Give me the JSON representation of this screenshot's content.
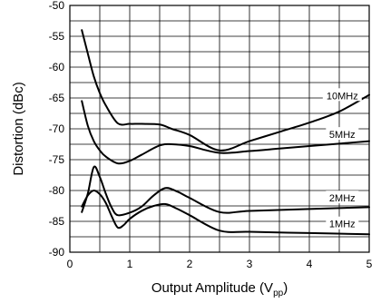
{
  "chart_data": {
    "type": "line",
    "xlabel": "Output Amplitude (V",
    "xlabel_sub": "pp",
    "xlabel_close": ")",
    "ylabel": "Distortion (dBc)",
    "xlim": [
      0,
      5
    ],
    "ylim": [
      -90,
      -50
    ],
    "xticks": [
      0,
      1,
      2,
      3,
      4,
      5
    ],
    "yticks": [
      -50,
      -55,
      -60,
      -65,
      -70,
      -75,
      -80,
      -85,
      -90
    ],
    "grid": true,
    "series": [
      {
        "name": "10MHz",
        "x": [
          0.2,
          0.3,
          0.4,
          0.5,
          0.6,
          0.8,
          1.0,
          1.2,
          1.5,
          1.7,
          2.0,
          2.5,
          3.0,
          3.5,
          4.0,
          4.5,
          5.0
        ],
        "y": [
          -54,
          -57.8,
          -61.5,
          -64.2,
          -66.2,
          -69.1,
          -69.2,
          -69.2,
          -69.3,
          -70.0,
          -71.0,
          -73.5,
          -72.0,
          -70.5,
          -69.0,
          -67.2,
          -64.5
        ]
      },
      {
        "name": "5MHz",
        "x": [
          0.2,
          0.3,
          0.4,
          0.5,
          0.6,
          0.8,
          1.0,
          1.2,
          1.5,
          1.7,
          2.0,
          2.5,
          3.0,
          3.5,
          4.0,
          4.5,
          5.0
        ],
        "y": [
          -65.5,
          -69.5,
          -72.0,
          -73.5,
          -74.5,
          -75.6,
          -75.2,
          -74.2,
          -72.7,
          -72.5,
          -72.8,
          -73.9,
          -73.6,
          -73.2,
          -72.8,
          -72.4,
          -72.0
        ]
      },
      {
        "name": "2MHz",
        "x": [
          0.2,
          0.3,
          0.4,
          0.5,
          0.6,
          0.7,
          0.8,
          1.0,
          1.2,
          1.4,
          1.6,
          1.8,
          2.0,
          2.5,
          3.0,
          4.0,
          5.0
        ],
        "y": [
          -83.5,
          -80.5,
          -76.2,
          -77.8,
          -80.5,
          -82.8,
          -84.0,
          -83.6,
          -82.6,
          -80.8,
          -79.6,
          -80.2,
          -81.2,
          -83.5,
          -83.3,
          -83.0,
          -82.7
        ]
      },
      {
        "name": "1MHz",
        "x": [
          0.2,
          0.3,
          0.4,
          0.5,
          0.6,
          0.7,
          0.8,
          0.9,
          1.0,
          1.2,
          1.4,
          1.6,
          1.8,
          2.0,
          2.5,
          3.0,
          4.0,
          5.0
        ],
        "y": [
          -82.6,
          -80.8,
          -80.0,
          -80.6,
          -82.0,
          -84.2,
          -86.0,
          -85.6,
          -84.6,
          -83.3,
          -82.5,
          -82.2,
          -83.0,
          -84.0,
          -86.5,
          -86.7,
          -86.9,
          -87.1
        ]
      }
    ],
    "series_labels": [
      {
        "series": "10MHz",
        "x": 4.55,
        "y": -64.6
      },
      {
        "series": "5MHz",
        "x": 4.55,
        "y": -70.9
      },
      {
        "series": "2MHz",
        "x": 4.55,
        "y": -81.2
      },
      {
        "series": "1MHz",
        "x": 4.55,
        "y": -85.4
      }
    ]
  }
}
